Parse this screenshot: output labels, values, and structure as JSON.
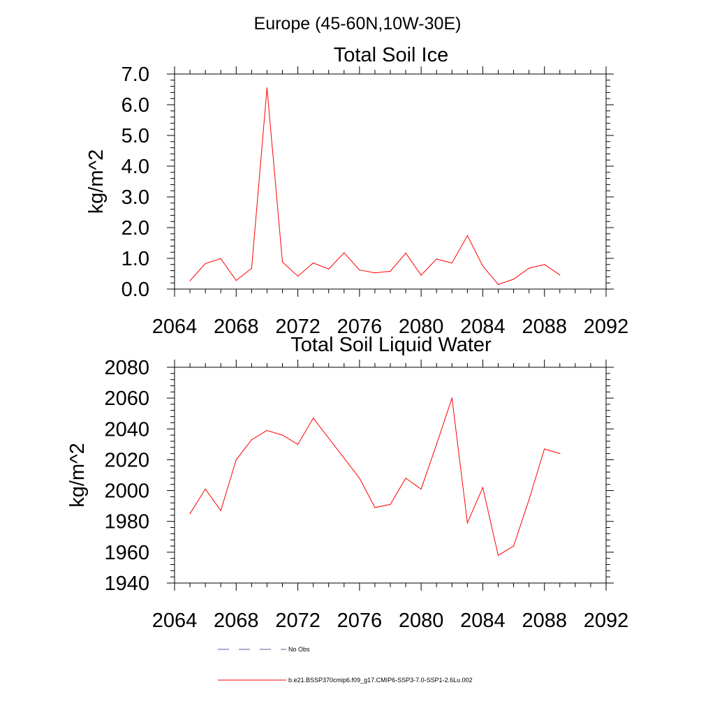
{
  "figure": {
    "main_title": "Europe (45-60N,10W-30E)"
  },
  "chart_data": [
    {
      "type": "line",
      "title": "Total Soil Ice",
      "xlabel": "",
      "ylabel": "kg/m^2",
      "xlim": [
        2064,
        2092
      ],
      "ylim": [
        0,
        7
      ],
      "x_ticks": [
        2064,
        2068,
        2072,
        2076,
        2080,
        2084,
        2088,
        2092
      ],
      "x_tick_labels": [
        "2064",
        "2068",
        "2072",
        "2076",
        "2080",
        "2084",
        "2088",
        "2092"
      ],
      "y_ticks": [
        0,
        1,
        2,
        3,
        4,
        5,
        6,
        7
      ],
      "y_tick_labels": [
        "0.0",
        "1.0",
        "2.0",
        "3.0",
        "4.0",
        "5.0",
        "6.0",
        "7.0"
      ],
      "grid": false,
      "series": [
        {
          "name": "b.e21.BSSP370cmip6.f09_g17.CMIP6-SSP3-7.0-SSP1-2.6Lu.002",
          "color": "#ff0000",
          "x": [
            2065,
            2066,
            2067,
            2068,
            2069,
            2070,
            2071,
            2072,
            2073,
            2074,
            2075,
            2076,
            2077,
            2078,
            2079,
            2080,
            2081,
            2082,
            2083,
            2084,
            2085,
            2086,
            2087,
            2088,
            2089
          ],
          "y": [
            0.27,
            0.83,
            0.99,
            0.28,
            0.68,
            6.55,
            0.88,
            0.42,
            0.85,
            0.65,
            1.18,
            0.62,
            0.53,
            0.58,
            1.17,
            0.45,
            0.98,
            0.85,
            1.74,
            0.75,
            0.15,
            0.32,
            0.68,
            0.8,
            0.46
          ]
        }
      ]
    },
    {
      "type": "line",
      "title": "Total Soil Liquid Water",
      "xlabel": "",
      "ylabel": "kg/m^2",
      "xlim": [
        2064,
        2092
      ],
      "ylim": [
        1940,
        2080
      ],
      "x_ticks": [
        2064,
        2068,
        2072,
        2076,
        2080,
        2084,
        2088,
        2092
      ],
      "x_tick_labels": [
        "2064",
        "2068",
        "2072",
        "2076",
        "2080",
        "2084",
        "2088",
        "2092"
      ],
      "y_ticks": [
        1940,
        1960,
        1980,
        2000,
        2020,
        2040,
        2060,
        2080
      ],
      "y_tick_labels": [
        "1940",
        "1960",
        "1980",
        "2000",
        "2020",
        "2040",
        "2060",
        "2080"
      ],
      "grid": false,
      "series": [
        {
          "name": "b.e21.BSSP370cmip6.f09_g17.CMIP6-SSP3-7.0-SSP1-2.6Lu.002",
          "color": "#ff0000",
          "x": [
            2065,
            2066,
            2067,
            2068,
            2069,
            2070,
            2071,
            2072,
            2073,
            2074,
            2075,
            2076,
            2077,
            2078,
            2079,
            2080,
            2081,
            2082,
            2083,
            2084,
            2085,
            2086,
            2087,
            2088,
            2089
          ],
          "y": [
            1985,
            2001,
            1987,
            2020,
            2033,
            2039,
            2036,
            2030,
            2047,
            2034,
            2021,
            2008,
            1989,
            1991,
            2008,
            2001,
            2030,
            2060,
            1979,
            2002,
            1958,
            1964,
            1994,
            2027,
            2024
          ]
        }
      ]
    }
  ],
  "legend": {
    "placement": "bottom",
    "entries": [
      {
        "label": "No Obs",
        "color": "#5a5a9a",
        "style": "dashed"
      },
      {
        "label": "b.e21.BSSP370cmip6.f09_g17.CMIP6-SSP3-7.0-SSP1-2.6Lu.002",
        "color": "#ff0000",
        "style": "solid"
      }
    ]
  }
}
